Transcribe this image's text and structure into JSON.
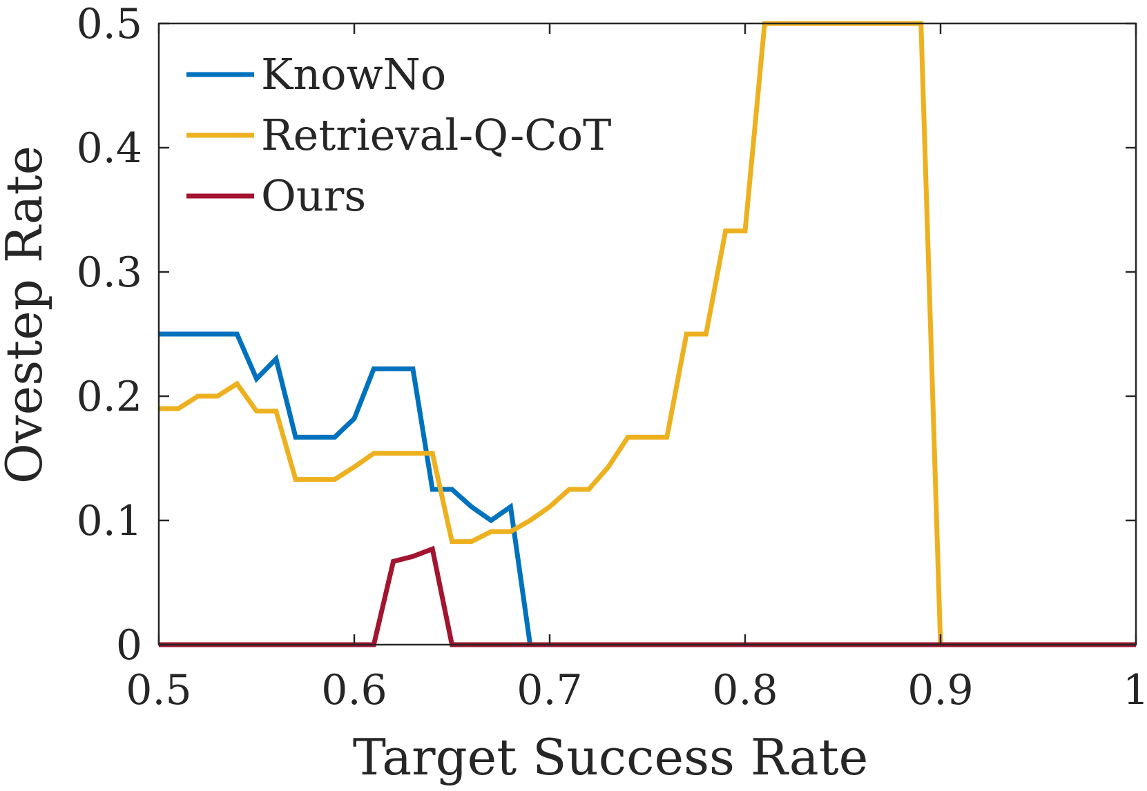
{
  "chart_data": {
    "type": "line",
    "title": "",
    "xlabel": "Target Success Rate",
    "ylabel": "Ovestep Rate",
    "xlim": [
      0.5,
      1.0
    ],
    "ylim": [
      0,
      0.5
    ],
    "xticks": [
      0.5,
      0.6,
      0.7,
      0.8,
      0.9,
      1.0
    ],
    "xtick_labels": [
      "0.5",
      "0.6",
      "0.7",
      "0.8",
      "0.9",
      "1"
    ],
    "yticks": [
      0,
      0.1,
      0.2,
      0.3,
      0.4,
      0.5
    ],
    "ytick_labels": [
      "0",
      "0.1",
      "0.2",
      "0.3",
      "0.4",
      "0.5"
    ],
    "grid": false,
    "legend_position": "top-left",
    "series": [
      {
        "name": "KnowNo",
        "color": "#0072BD",
        "x": [
          0.5,
          0.54,
          0.55,
          0.56,
          0.57,
          0.59,
          0.6,
          0.61,
          0.63,
          0.64,
          0.65,
          0.66,
          0.67,
          0.68,
          0.69,
          1.0
        ],
        "y": [
          0.25,
          0.25,
          0.214,
          0.23,
          0.167,
          0.167,
          0.182,
          0.222,
          0.222,
          0.125,
          0.125,
          0.111,
          0.1,
          0.111,
          0.0,
          0.0
        ]
      },
      {
        "name": "Retrieval-Q-CoT",
        "color": "#EDB120",
        "x": [
          0.5,
          0.51,
          0.52,
          0.53,
          0.54,
          0.55,
          0.56,
          0.57,
          0.59,
          0.6,
          0.61,
          0.64,
          0.65,
          0.66,
          0.67,
          0.68,
          0.69,
          0.7,
          0.71,
          0.72,
          0.73,
          0.74,
          0.76,
          0.77,
          0.78,
          0.79,
          0.8,
          0.81,
          0.89,
          0.9,
          1.0
        ],
        "y": [
          0.19,
          0.19,
          0.2,
          0.2,
          0.21,
          0.188,
          0.188,
          0.133,
          0.133,
          0.143,
          0.154,
          0.154,
          0.083,
          0.083,
          0.091,
          0.091,
          0.1,
          0.111,
          0.125,
          0.125,
          0.143,
          0.167,
          0.167,
          0.25,
          0.25,
          0.333,
          0.333,
          0.5,
          0.5,
          0.0,
          0.0
        ]
      },
      {
        "name": "Ours",
        "color": "#A2142F",
        "x": [
          0.5,
          0.61,
          0.62,
          0.63,
          0.64,
          0.65,
          1.0
        ],
        "y": [
          0.0,
          0.0,
          0.067,
          0.071,
          0.077,
          0.0,
          0.0
        ]
      }
    ]
  }
}
